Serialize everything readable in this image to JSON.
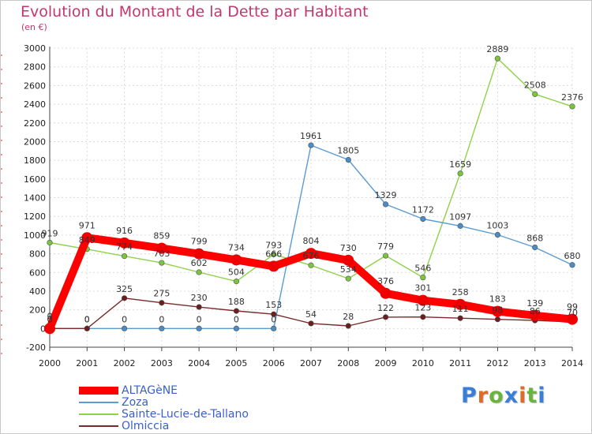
{
  "title": "Evolution du Montant de la Dette par Habitant",
  "subtitle": "(en €)",
  "brand": {
    "letters": [
      "P",
      "r",
      "o",
      "x",
      "i",
      "t",
      "i"
    ],
    "colors": [
      "#3a7fd5",
      "#e06a26",
      "#6ab43e",
      "#3a7fd5",
      "#e06a26",
      "#6ab43e",
      "#3a7fd5"
    ]
  },
  "chart_data": {
    "type": "line",
    "title": "Evolution du Montant de la Dette par Habitant",
    "subtitle": "(en €)",
    "xlabel": "",
    "ylabel": "",
    "x": [
      "2000",
      "2001",
      "2002",
      "2003",
      "2004",
      "2005",
      "2006",
      "2007",
      "2008",
      "2009",
      "2010",
      "2011",
      "2012",
      "2013",
      "2014"
    ],
    "ylim": [
      -200,
      3000
    ],
    "yticks": [
      "-200",
      "0",
      "200",
      "400",
      "600",
      "800",
      "1000",
      "1200",
      "1400",
      "1600",
      "1800",
      "2000",
      "2200",
      "2400",
      "2600",
      "2800",
      "3000"
    ],
    "grid": true,
    "legend": "bottom-left",
    "series": [
      {
        "name": "Sainte-Lucie-de-Tallano",
        "color": "#8ed24a",
        "dot": "#7cc440",
        "values": [
          919,
          849,
          774,
          703,
          602,
          504,
          793,
          676,
          534,
          779,
          546,
          1659,
          2889,
          2508,
          2376
        ],
        "labels": [
          "919",
          "849",
          "774",
          "703",
          "602",
          "504",
          "793",
          "676",
          "534",
          "779",
          "546",
          "1659",
          "2889",
          "2508",
          "2376"
        ]
      },
      {
        "name": "Zoza",
        "color": "#5a9bd2",
        "dot": "#4a8cc8",
        "values": [
          0,
          0,
          0,
          0,
          0,
          0,
          0,
          1961,
          1805,
          1329,
          1172,
          1097,
          1003,
          868,
          680
        ],
        "labels": [
          "0",
          "0",
          "0",
          "0",
          "0",
          "0",
          "0",
          "1961",
          "1805",
          "1329",
          "1172",
          "1097",
          "1003",
          "868",
          "680"
        ]
      },
      {
        "name": "Olmiccia",
        "color": "#7a2a2a",
        "dot": "#6a1e1e",
        "values": [
          0,
          0,
          325,
          275,
          230,
          188,
          153,
          54,
          28,
          122,
          123,
          111,
          98,
          86,
          70
        ],
        "labels": [
          "0",
          "0",
          "325",
          "275",
          "230",
          "188",
          "153",
          "54",
          "28",
          "122",
          "123",
          "111",
          "98",
          "86",
          "70"
        ]
      },
      {
        "name": "ALTAGèNE",
        "color": "#ff0000",
        "dot": "#ee0000",
        "values": [
          0,
          971,
          916,
          859,
          799,
          734,
          666,
          804,
          730,
          376,
          301,
          258,
          183,
          139,
          99
        ],
        "labels": [
          "0",
          "971",
          "916",
          "859",
          "799",
          "734",
          "666",
          "804",
          "730",
          "376",
          "301",
          "258",
          "183",
          "139",
          "99"
        ]
      }
    ]
  },
  "legend": [
    {
      "name": "ALTAGèNE",
      "color": "#ff0000",
      "thick": 10
    },
    {
      "name": "Zoza",
      "color": "#5a9bd2",
      "thick": 2
    },
    {
      "name": "Sainte-Lucie-de-Tallano",
      "color": "#8ed24a",
      "thick": 2
    },
    {
      "name": "Olmiccia",
      "color": "#7a2a2a",
      "thick": 2
    }
  ]
}
